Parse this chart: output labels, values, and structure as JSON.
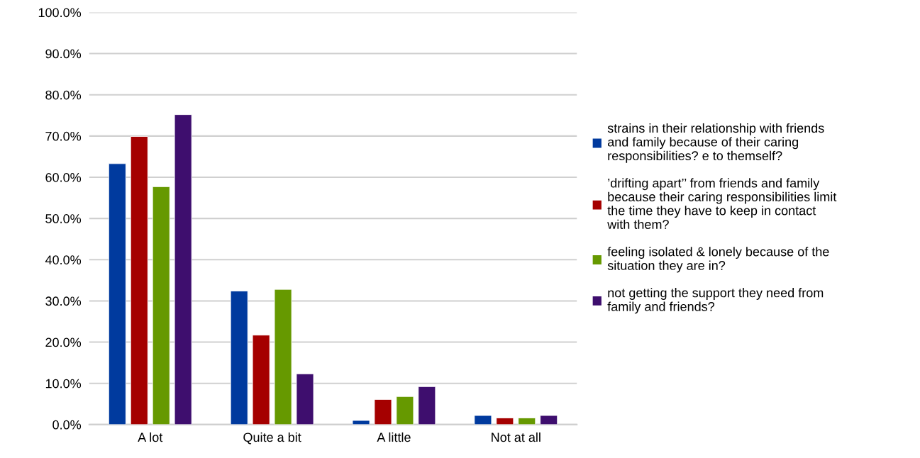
{
  "chart_data": {
    "type": "bar",
    "categories": [
      "A lot",
      "Quite a bit",
      "A little",
      "Not at all"
    ],
    "series": [
      {
        "name": "strains in their relationship with friends\nand family because of their caring\nresponsibilities? e to themself?",
        "color": "#003a9e",
        "values": [
          63.3,
          32.4,
          1.0,
          2.2
        ]
      },
      {
        "name": "’drifting apart’’ from friends and family\nbecause their caring responsibilities limit\nthe time they have to keep in contact\nwith them?",
        "color": "#a50000",
        "values": [
          69.9,
          21.7,
          6.1,
          1.6
        ]
      },
      {
        "name": "feeling isolated & lonely because of the\nsituation they are in?",
        "color": "#669900",
        "values": [
          57.7,
          32.8,
          6.8,
          1.6
        ]
      },
      {
        "name": "not getting the support they need from\nfamily and friends?",
        "color": "#3e0e6e",
        "values": [
          75.2,
          12.3,
          9.2,
          2.2
        ]
      }
    ],
    "ylim": [
      0,
      100
    ],
    "yticks": [
      {
        "value": 0,
        "label": "0.0%"
      },
      {
        "value": 10,
        "label": "10.0%"
      },
      {
        "value": 20,
        "label": "20.0%"
      },
      {
        "value": 30,
        "label": "30.0%"
      },
      {
        "value": 40,
        "label": "40.0%"
      },
      {
        "value": 50,
        "label": "50.0%"
      },
      {
        "value": 60,
        "label": "60.0%"
      },
      {
        "value": 70,
        "label": "70.0%"
      },
      {
        "value": 80,
        "label": "80.0%"
      },
      {
        "value": 90,
        "label": "90.0%"
      },
      {
        "value": 100,
        "label": "100.0%"
      }
    ],
    "grid": "y",
    "legend": "right"
  }
}
